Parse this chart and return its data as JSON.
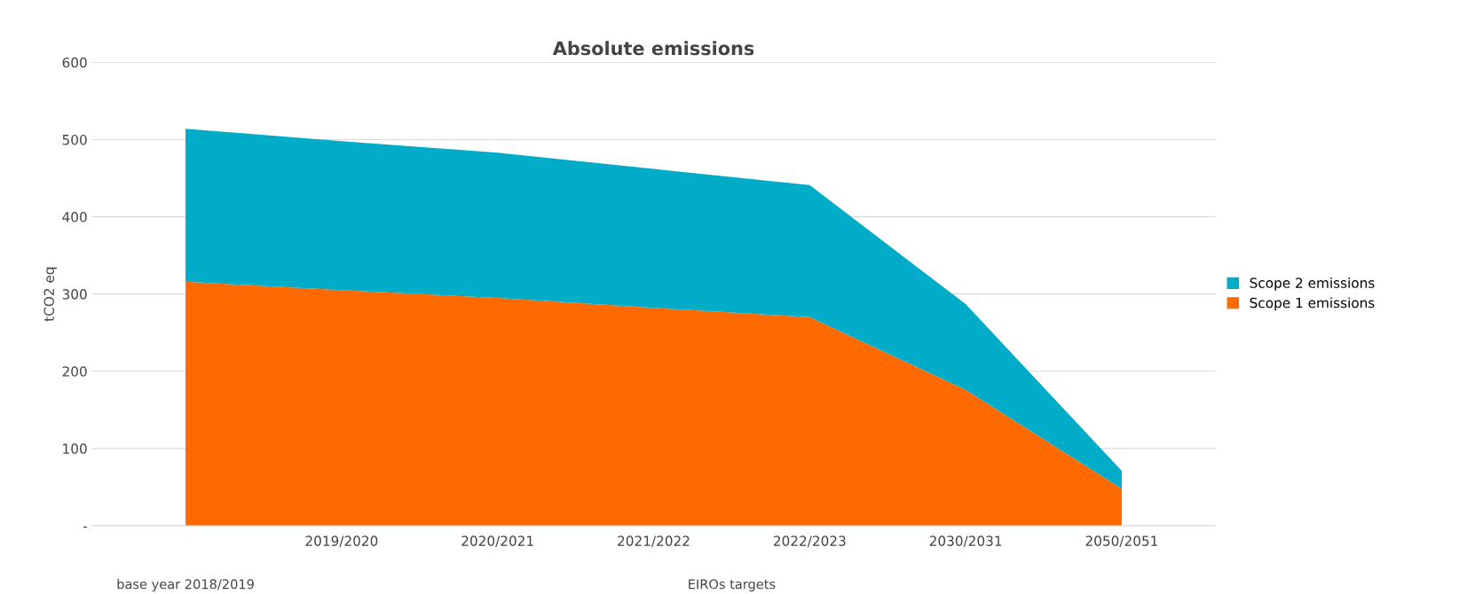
{
  "chart_data": {
    "type": "area",
    "title": "Absolute emissions",
    "ylabel": "tCO2 eq",
    "categories": [
      null,
      "2019/2020",
      "2020/2021",
      "2021/2022",
      "2022/2023",
      "2030/2031",
      "2050/2051"
    ],
    "stacked": true,
    "series": [
      {
        "name": "Scope 1 emissions",
        "color": "#ff6a00",
        "values": [
          316,
          305,
          295,
          282,
          270,
          176,
          48
        ]
      },
      {
        "name": "Scope 2 emissions",
        "color": "#00acc8",
        "values": [
          198,
          193,
          188,
          180,
          171,
          111,
          23
        ]
      }
    ],
    "ylim": [
      0,
      600
    ],
    "yticks": [
      {
        "value": 0,
        "label": "-"
      },
      100,
      200,
      300,
      400,
      500,
      600
    ],
    "grid": "y",
    "legend": "right",
    "annotations": [
      "base year 2018/2019",
      "EIROs targets"
    ]
  }
}
